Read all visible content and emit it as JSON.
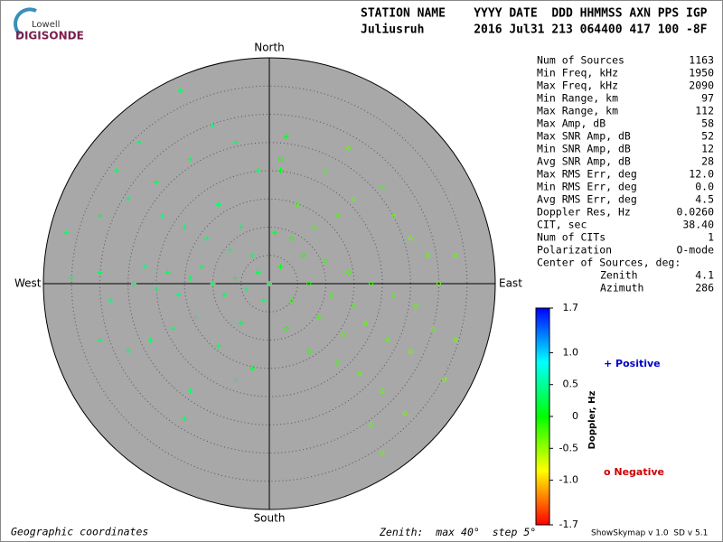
{
  "logo": {
    "top": "Lowell",
    "bottom": "DIGISONDE"
  },
  "header": {
    "line1": "STATION NAME    YYYY DATE  DDD HHMMSS AXN PPS IGP",
    "line2": "Juliusruh       2016 Jul31 213 064400 417 100 -8F"
  },
  "plot": {
    "north": "North",
    "south": "South",
    "east": "East",
    "west": "West",
    "sources": [
      [
        -15.7,
        34.2,
        0.3
      ],
      [
        -10,
        28,
        0.4
      ],
      [
        -6,
        25,
        0.3
      ],
      [
        -2,
        20,
        0.35
      ],
      [
        -14,
        22,
        0.3
      ],
      [
        -20,
        18,
        0.25
      ],
      [
        -25,
        15,
        0.3
      ],
      [
        -30,
        12,
        0.2
      ],
      [
        -36,
        9,
        0.3
      ],
      [
        -35,
        1,
        0.25
      ],
      [
        -30,
        2,
        0.3
      ],
      [
        -28,
        -3,
        0.35
      ],
      [
        -24,
        0,
        0.3
      ],
      [
        -22,
        3,
        0.4
      ],
      [
        -20,
        -1,
        0.3
      ],
      [
        -18,
        2,
        0.3
      ],
      [
        -16,
        -2,
        0.35
      ],
      [
        -14,
        1,
        0.3
      ],
      [
        -12,
        3,
        0.3
      ],
      [
        -10,
        0,
        0.25
      ],
      [
        -8,
        -2,
        0.3
      ],
      [
        -6,
        1,
        0.2
      ],
      [
        -4,
        -1,
        0.3
      ],
      [
        -2,
        2,
        0.25
      ],
      [
        0,
        0,
        0.2
      ],
      [
        -1,
        -3,
        0.3
      ],
      [
        -3,
        5,
        0.35
      ],
      [
        -7,
        6,
        0.3
      ],
      [
        -11,
        8,
        0.3
      ],
      [
        -15,
        10,
        0.3
      ],
      [
        -19,
        12,
        0.4
      ],
      [
        -5,
        10,
        0.3
      ],
      [
        -9,
        14,
        0.35
      ],
      [
        -13,
        -6,
        0.3
      ],
      [
        -17,
        -8,
        0.3
      ],
      [
        -21,
        -10,
        0.3
      ],
      [
        -25,
        -12,
        0.35
      ],
      [
        -30,
        -10,
        0.3
      ],
      [
        -9,
        -11,
        0.3
      ],
      [
        -5,
        -7,
        0.25
      ],
      [
        -14,
        -19,
        0.3
      ],
      [
        -6,
        -17,
        0.3
      ],
      [
        -15,
        -24,
        0.3
      ],
      [
        -3,
        -15,
        0.2
      ],
      [
        2,
        20,
        0.1
      ],
      [
        3,
        26,
        0.1
      ],
      [
        -23,
        25,
        0.3
      ],
      [
        -27,
        20,
        0.3
      ],
      [
        1,
        9,
        0.15
      ],
      [
        2,
        3,
        0.1
      ],
      [
        5,
        14,
        -0.2
      ],
      [
        8,
        10,
        -0.2
      ],
      [
        12,
        12,
        -0.25
      ],
      [
        15,
        15,
        -0.3
      ],
      [
        20,
        17,
        -0.2
      ],
      [
        22,
        12,
        -0.3
      ],
      [
        25,
        8,
        -0.35
      ],
      [
        28,
        5,
        -0.3
      ],
      [
        30,
        0,
        -0.3
      ],
      [
        26,
        -4,
        -0.3
      ],
      [
        22,
        -2,
        -0.25
      ],
      [
        18,
        0,
        -0.2
      ],
      [
        14,
        2,
        -0.2
      ],
      [
        10,
        4,
        -0.15
      ],
      [
        7,
        0,
        -0.1
      ],
      [
        4,
        -3,
        -0.15
      ],
      [
        9,
        -6,
        -0.2
      ],
      [
        13,
        -9,
        -0.25
      ],
      [
        17,
        -7,
        -0.3
      ],
      [
        21,
        -10,
        -0.3
      ],
      [
        25,
        -12,
        -0.35
      ],
      [
        29,
        -8,
        -0.3
      ],
      [
        33,
        -10,
        -0.35
      ],
      [
        12,
        -14,
        -0.2
      ],
      [
        16,
        -16,
        -0.3
      ],
      [
        20,
        -19,
        -0.3
      ],
      [
        24,
        -23,
        -0.35
      ],
      [
        18,
        -25,
        -0.3
      ],
      [
        4,
        8,
        -0.1
      ],
      [
        6,
        5,
        -0.1
      ],
      [
        11,
        -2,
        -0.2
      ],
      [
        15,
        -4,
        -0.2
      ],
      [
        3,
        -8,
        -0.1
      ],
      [
        7,
        -12,
        -0.15
      ],
      [
        10,
        20,
        -0.2
      ],
      [
        14,
        24,
        -0.3
      ],
      [
        2,
        22,
        -0.1
      ],
      [
        33,
        5,
        -0.3
      ],
      [
        31,
        -17,
        -0.4
      ],
      [
        20,
        -30,
        -0.3
      ]
    ]
  },
  "stats": {
    "rows": [
      [
        "Num of Sources",
        "1163"
      ],
      [
        "Min Freq, kHz",
        "1950"
      ],
      [
        "Max Freq, kHz",
        "2090"
      ],
      [
        "Min Range, km",
        "97"
      ],
      [
        "Max Range, km",
        "112"
      ],
      [
        "Max Amp, dB",
        "58"
      ],
      [
        "Max SNR Amp, dB",
        "52"
      ],
      [
        "Min SNR Amp, dB",
        "12"
      ],
      [
        "Avg SNR Amp, dB",
        "28"
      ],
      [
        "Max RMS Err, deg",
        "12.0"
      ],
      [
        "Min RMS Err, deg",
        "0.0"
      ],
      [
        "Avg RMS Err, deg",
        "4.5"
      ],
      [
        "Doppler Res, Hz",
        "0.0260"
      ],
      [
        "CIT, sec",
        "38.40"
      ],
      [
        "Num of CITs",
        "1"
      ],
      [
        "Polarization",
        "O-mode"
      ]
    ],
    "center_title": "Center of Sources, deg:",
    "center_rows": [
      [
        "Zenith",
        "4.1"
      ],
      [
        "Azimuth",
        "286"
      ]
    ]
  },
  "colorbar": {
    "label": "Doppler, Hz",
    "ticks": [
      -1.7,
      {
        "value": -1,
        "label": "-1.0"
      },
      -0.5,
      0,
      0.5,
      {
        "value": 1,
        "label": "1.0"
      },
      1.7
    ]
  },
  "legend": {
    "positive": "Positive",
    "negative": "Negative"
  },
  "footer": {
    "coords": "Geographic coordinates",
    "zenith_label": "Zenith:  max",
    "zenith_max": 40,
    "unit": "°",
    "step_label": "step",
    "zenith_step": 5,
    "version": "ShowSkymap v 1.0  SD v 5.1"
  }
}
